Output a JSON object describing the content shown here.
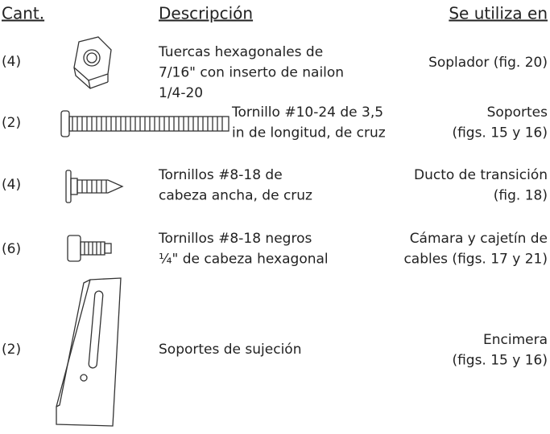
{
  "header": {
    "quantity": "Cant.",
    "description": "Descripción",
    "used_in": "Se utiliza en"
  },
  "rows": [
    {
      "quantity": "(4)",
      "description": [
        "Tuercas hexagonales de",
        "7/16\" con inserto de nailon",
        "1/4-20"
      ],
      "used_in": [
        "Soplador (fig. 20)"
      ]
    },
    {
      "quantity": "(2)",
      "description": [
        "Tornillo #10-24 de 3,5",
        "in de longitud, de cruz"
      ],
      "used_in": [
        "Soportes",
        "(figs. 15 y 16)"
      ]
    },
    {
      "quantity": "(4)",
      "description": [
        "Tornillos #8-18 de",
        "cabeza ancha, de cruz"
      ],
      "used_in": [
        "Ducto de transición",
        "(fig. 18)"
      ]
    },
    {
      "quantity": "(6)",
      "description": [
        "Tornillos #8-18 negros",
        "¼\" de cabeza hexagonal"
      ],
      "used_in": [
        "Cámara y cajetín de",
        "cables (figs. 17 y 21)"
      ]
    },
    {
      "quantity": "(2)",
      "description": [
        "Soportes de sujeción"
      ],
      "used_in": [
        "Encimera",
        "(figs. 15 y 16)"
      ]
    }
  ]
}
